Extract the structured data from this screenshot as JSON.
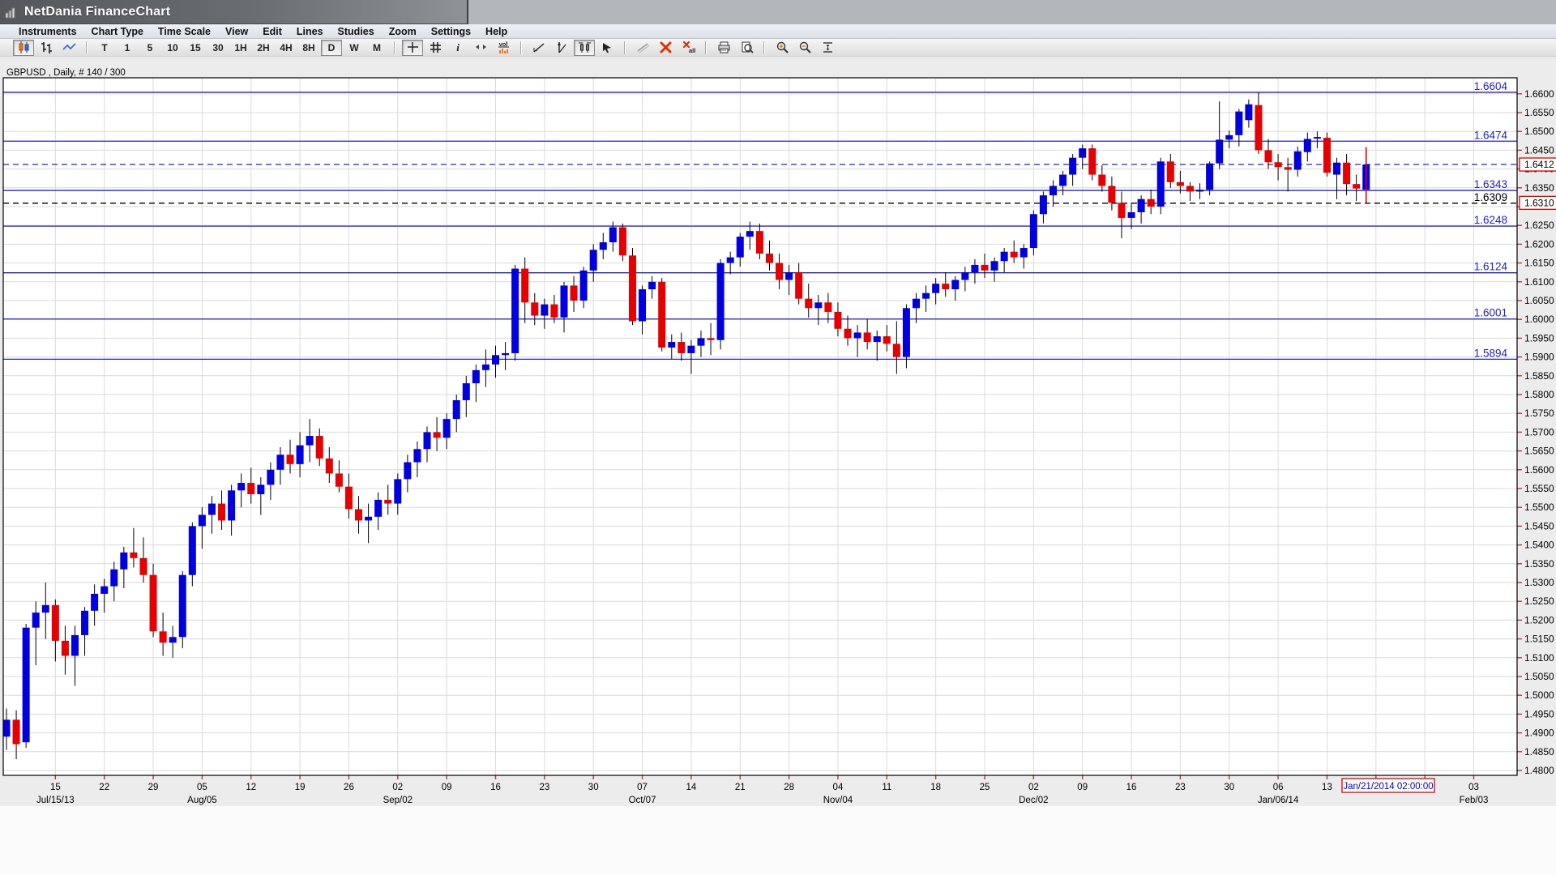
{
  "window": {
    "title": "NetDania FinanceChart",
    "icon": "mini-chart-icon"
  },
  "menu": {
    "items": [
      "Instruments",
      "Chart Type",
      "Time Scale",
      "View",
      "Edit",
      "Lines",
      "Studies",
      "Zoom",
      "Settings",
      "Help"
    ]
  },
  "toolbar": {
    "chart_type_buttons": [
      {
        "name": "candlestick-chart-button",
        "icon": "candlestick-icon",
        "pressed": true
      },
      {
        "name": "ohlc-bar-chart-button",
        "icon": "ohlc-bars-icon",
        "pressed": false
      },
      {
        "name": "line-chart-button",
        "icon": "line-chart-icon",
        "pressed": false
      }
    ],
    "timeframe_buttons": [
      {
        "label": "T",
        "pressed": false
      },
      {
        "label": "1",
        "pressed": false
      },
      {
        "label": "5",
        "pressed": false
      },
      {
        "label": "10",
        "pressed": false
      },
      {
        "label": "15",
        "pressed": false
      },
      {
        "label": "30",
        "pressed": false
      },
      {
        "label": "1H",
        "pressed": false
      },
      {
        "label": "2H",
        "pressed": false
      },
      {
        "label": "4H",
        "pressed": false
      },
      {
        "label": "8H",
        "pressed": false
      },
      {
        "label": "D",
        "pressed": true
      },
      {
        "label": "W",
        "pressed": false
      },
      {
        "label": "M",
        "pressed": false
      }
    ],
    "view_tool_buttons": [
      {
        "name": "crosshair-button",
        "icon": "crosshair-icon",
        "pressed": true
      },
      {
        "name": "grid-button",
        "icon": "grid-icon",
        "pressed": false
      },
      {
        "name": "info-button",
        "icon": "info-icon",
        "pressed": false
      },
      {
        "name": "scroll-arrows-button",
        "icon": "left-right-arrows-icon",
        "pressed": false
      },
      {
        "name": "volume-button",
        "icon": "volume-bars-icon",
        "pressed": false
      }
    ],
    "line_tool_buttons": [
      {
        "name": "trend-angle-button",
        "icon": "trend-angle-icon",
        "pressed": false
      },
      {
        "name": "vertical-trend-button",
        "icon": "vertical-trend-icon",
        "pressed": false
      },
      {
        "name": "bar-compare-button",
        "icon": "candle-compare-icon",
        "pressed": true
      },
      {
        "name": "pointer-flag-button",
        "icon": "pointer-flag-icon",
        "pressed": false
      }
    ],
    "edit_buttons": [
      {
        "name": "draw-line-button",
        "icon": "diagonal-line-icon",
        "pressed": false
      },
      {
        "name": "delete-button",
        "icon": "red-x-icon",
        "pressed": false
      },
      {
        "name": "delete-all-button",
        "icon": "red-x-all-icon",
        "pressed": false
      }
    ],
    "print_buttons": [
      {
        "name": "print-button",
        "icon": "printer-icon",
        "pressed": false
      },
      {
        "name": "print-preview-button",
        "icon": "print-preview-icon",
        "pressed": false
      }
    ],
    "zoom_buttons": [
      {
        "name": "zoom-in-button",
        "icon": "zoom-in-icon",
        "pressed": false
      },
      {
        "name": "zoom-out-button",
        "icon": "zoom-out-icon",
        "pressed": false
      },
      {
        "name": "fit-vertical-button",
        "icon": "fit-vertical-icon",
        "pressed": false
      }
    ]
  },
  "chart": {
    "instrument_label": "GBPUSD , Daily, # 140 / 300",
    "price_axis": {
      "min": 1.48,
      "max": 1.66,
      "step": 0.005
    },
    "levels": [
      {
        "label": "1.6604",
        "price": 1.6604,
        "style": "solid",
        "color": "#2121cc"
      },
      {
        "label": "1.6474",
        "price": 1.6474,
        "style": "solid",
        "color": "#2121cc"
      },
      {
        "label": "",
        "price": 1.6412,
        "style": "dashed",
        "color": "#2121cc"
      },
      {
        "label": "1.6343",
        "price": 1.6343,
        "style": "solid",
        "color": "#2121cc"
      },
      {
        "label": "1.6309",
        "price": 1.6309,
        "style": "dashed",
        "color": "#000000"
      },
      {
        "label": "1.6248",
        "price": 1.6248,
        "style": "solid",
        "color": "#2121cc"
      },
      {
        "label": "1.6124",
        "price": 1.6124,
        "style": "solid",
        "color": "#2121cc"
      },
      {
        "label": "1.6001",
        "price": 1.6001,
        "style": "solid",
        "color": "#2121cc"
      },
      {
        "label": "1.5894",
        "price": 1.5894,
        "style": "solid",
        "color": "#2121cc"
      }
    ],
    "price_marker_boxes": [
      {
        "text": "1.6412",
        "price": 1.6412
      },
      {
        "text": "1.6310",
        "price": 1.631
      }
    ],
    "cursor_date_box": "Jan/21/2014 02:00:00",
    "x_axis": {
      "week_labels": [
        "15",
        "22",
        "29",
        "05",
        "12",
        "19",
        "26",
        "02",
        "09",
        "16",
        "23",
        "30",
        "07",
        "14",
        "21",
        "28",
        "04",
        "11",
        "18",
        "25",
        "02",
        "09",
        "16",
        "23",
        "30",
        "06",
        "13",
        "",
        "",
        "03"
      ],
      "month_labels": [
        {
          "week_index": 0,
          "text": "Jul/15/13"
        },
        {
          "week_index": 3,
          "text": "Aug/05"
        },
        {
          "week_index": 7,
          "text": "Sep/02"
        },
        {
          "week_index": 12,
          "text": "Oct/07"
        },
        {
          "week_index": 16,
          "text": "Nov/04"
        },
        {
          "week_index": 20,
          "text": "Dec/02"
        },
        {
          "week_index": 25,
          "text": "Jan/06/14"
        },
        {
          "week_index": 29,
          "text": "Feb/03"
        }
      ]
    }
  },
  "chart_data": {
    "type": "candlestick",
    "title": "GBPUSD Daily",
    "up_color": "#0000e0",
    "down_color": "#e60000",
    "wick_color": "#000000",
    "ylim": [
      1.48,
      1.66
    ],
    "current_bar_line": {
      "high": 1.6458,
      "low": 1.631
    },
    "candles": [
      [
        1.489,
        1.4965,
        1.4855,
        1.4935
      ],
      [
        1.4935,
        1.496,
        1.483,
        1.487
      ],
      [
        1.4875,
        1.519,
        1.486,
        1.518
      ],
      [
        1.518,
        1.525,
        1.508,
        1.522
      ],
      [
        1.522,
        1.53,
        1.515,
        1.524
      ],
      [
        1.524,
        1.5255,
        1.509,
        1.5145
      ],
      [
        1.5145,
        1.5185,
        1.5055,
        1.5105
      ],
      [
        1.5105,
        1.5185,
        1.5025,
        1.516
      ],
      [
        1.516,
        1.5235,
        1.5105,
        1.5225
      ],
      [
        1.5225,
        1.5295,
        1.5185,
        1.527
      ],
      [
        1.527,
        1.531,
        1.522,
        1.529
      ],
      [
        1.529,
        1.5355,
        1.525,
        1.5335
      ],
      [
        1.5335,
        1.5395,
        1.5285,
        1.538
      ],
      [
        1.538,
        1.5445,
        1.534,
        1.5365
      ],
      [
        1.5365,
        1.542,
        1.53,
        1.532
      ],
      [
        1.532,
        1.535,
        1.5155,
        1.517
      ],
      [
        1.517,
        1.522,
        1.5105,
        1.514
      ],
      [
        1.514,
        1.5185,
        1.51,
        1.5155
      ],
      [
        1.5155,
        1.533,
        1.5125,
        1.532
      ],
      [
        1.532,
        1.546,
        1.529,
        1.545
      ],
      [
        1.545,
        1.55,
        1.539,
        1.548
      ],
      [
        1.548,
        1.553,
        1.543,
        1.551
      ],
      [
        1.551,
        1.5545,
        1.544,
        1.5465
      ],
      [
        1.5465,
        1.556,
        1.5425,
        1.5545
      ],
      [
        1.5545,
        1.559,
        1.55,
        1.5565
      ],
      [
        1.5565,
        1.5605,
        1.551,
        1.5535
      ],
      [
        1.5535,
        1.558,
        1.548,
        1.556
      ],
      [
        1.556,
        1.562,
        1.552,
        1.56
      ],
      [
        1.56,
        1.566,
        1.556,
        1.564
      ],
      [
        1.564,
        1.568,
        1.559,
        1.5615
      ],
      [
        1.5615,
        1.57,
        1.558,
        1.5665
      ],
      [
        1.5665,
        1.5735,
        1.562,
        1.569
      ],
      [
        1.569,
        1.571,
        1.561,
        1.563
      ],
      [
        1.563,
        1.566,
        1.5565,
        1.559
      ],
      [
        1.559,
        1.5625,
        1.554,
        1.5555
      ],
      [
        1.5555,
        1.559,
        1.547,
        1.5495
      ],
      [
        1.5495,
        1.553,
        1.543,
        1.5465
      ],
      [
        1.5465,
        1.551,
        1.5405,
        1.5475
      ],
      [
        1.5475,
        1.554,
        1.544,
        1.552
      ],
      [
        1.552,
        1.556,
        1.548,
        1.551
      ],
      [
        1.551,
        1.559,
        1.548,
        1.5575
      ],
      [
        1.5575,
        1.564,
        1.554,
        1.562
      ],
      [
        1.562,
        1.5675,
        1.558,
        1.5655
      ],
      [
        1.5655,
        1.5715,
        1.562,
        1.57
      ],
      [
        1.57,
        1.574,
        1.565,
        1.5685
      ],
      [
        1.5685,
        1.575,
        1.5655,
        1.5735
      ],
      [
        1.5735,
        1.58,
        1.57,
        1.5785
      ],
      [
        1.5785,
        1.585,
        1.574,
        1.583
      ],
      [
        1.583,
        1.588,
        1.578,
        1.5865
      ],
      [
        1.5865,
        1.592,
        1.582,
        1.588
      ],
      [
        1.588,
        1.593,
        1.5845,
        1.5905
      ],
      [
        1.5905,
        1.594,
        1.5865,
        1.591
      ],
      [
        1.591,
        1.6145,
        1.589,
        1.6135
      ],
      [
        1.6135,
        1.6165,
        1.599,
        1.6045
      ],
      [
        1.6045,
        1.607,
        1.5985,
        1.601
      ],
      [
        1.601,
        1.6055,
        1.5975,
        1.604
      ],
      [
        1.604,
        1.6065,
        1.599,
        1.6005
      ],
      [
        1.6005,
        1.61,
        1.5965,
        1.609
      ],
      [
        1.609,
        1.6115,
        1.602,
        1.605
      ],
      [
        1.605,
        1.614,
        1.603,
        1.613
      ],
      [
        1.613,
        1.62,
        1.61,
        1.6185
      ],
      [
        1.6185,
        1.623,
        1.616,
        1.6205
      ],
      [
        1.6205,
        1.626,
        1.618,
        1.6245
      ],
      [
        1.6245,
        1.6255,
        1.6155,
        1.617
      ],
      [
        1.617,
        1.619,
        1.5985,
        1.5995
      ],
      [
        1.5995,
        1.609,
        1.596,
        1.608
      ],
      [
        1.608,
        1.6115,
        1.6055,
        1.61
      ],
      [
        1.61,
        1.611,
        1.5915,
        1.5925
      ],
      [
        1.5925,
        1.596,
        1.5895,
        1.594
      ],
      [
        1.594,
        1.5965,
        1.589,
        1.591
      ],
      [
        1.591,
        1.5945,
        1.5855,
        1.593
      ],
      [
        1.593,
        1.597,
        1.59,
        1.595
      ],
      [
        1.595,
        1.599,
        1.5905,
        1.5945
      ],
      [
        1.5945,
        1.616,
        1.592,
        1.615
      ],
      [
        1.615,
        1.618,
        1.612,
        1.6165
      ],
      [
        1.6165,
        1.623,
        1.614,
        1.622
      ],
      [
        1.622,
        1.626,
        1.6185,
        1.6235
      ],
      [
        1.6235,
        1.6255,
        1.616,
        1.6175
      ],
      [
        1.6175,
        1.621,
        1.613,
        1.615
      ],
      [
        1.615,
        1.6175,
        1.608,
        1.6105
      ],
      [
        1.6105,
        1.6145,
        1.6065,
        1.6125
      ],
      [
        1.6125,
        1.615,
        1.604,
        1.6055
      ],
      [
        1.6055,
        1.6095,
        1.6005,
        1.603
      ],
      [
        1.603,
        1.6065,
        1.5985,
        1.6045
      ],
      [
        1.6045,
        1.607,
        1.599,
        1.602
      ],
      [
        1.602,
        1.6045,
        1.5955,
        1.5975
      ],
      [
        1.5975,
        1.601,
        1.593,
        1.595
      ],
      [
        1.595,
        1.5985,
        1.59,
        1.5965
      ],
      [
        1.5965,
        1.6,
        1.592,
        1.594
      ],
      [
        1.594,
        1.597,
        1.589,
        1.5955
      ],
      [
        1.5955,
        1.5985,
        1.5915,
        1.5935
      ],
      [
        1.5935,
        1.5995,
        1.5855,
        1.59
      ],
      [
        1.59,
        1.604,
        1.587,
        1.603
      ],
      [
        1.603,
        1.607,
        1.599,
        1.6055
      ],
      [
        1.6055,
        1.609,
        1.602,
        1.607
      ],
      [
        1.607,
        1.611,
        1.604,
        1.6095
      ],
      [
        1.6095,
        1.6125,
        1.606,
        1.608
      ],
      [
        1.608,
        1.6115,
        1.605,
        1.6105
      ],
      [
        1.6105,
        1.614,
        1.6075,
        1.6125
      ],
      [
        1.6125,
        1.616,
        1.6095,
        1.6145
      ],
      [
        1.6145,
        1.6175,
        1.611,
        1.613
      ],
      [
        1.613,
        1.6165,
        1.61,
        1.6155
      ],
      [
        1.6155,
        1.619,
        1.6125,
        1.618
      ],
      [
        1.618,
        1.621,
        1.615,
        1.6165
      ],
      [
        1.6165,
        1.62,
        1.6135,
        1.619
      ],
      [
        1.619,
        1.629,
        1.617,
        1.628
      ],
      [
        1.628,
        1.634,
        1.6255,
        1.633
      ],
      [
        1.633,
        1.637,
        1.63,
        1.6355
      ],
      [
        1.6355,
        1.6395,
        1.633,
        1.6385
      ],
      [
        1.6385,
        1.644,
        1.6355,
        1.643
      ],
      [
        1.643,
        1.6465,
        1.64,
        1.6455
      ],
      [
        1.6455,
        1.6465,
        1.637,
        1.6385
      ],
      [
        1.6385,
        1.641,
        1.634,
        1.6355
      ],
      [
        1.6355,
        1.638,
        1.629,
        1.631
      ],
      [
        1.631,
        1.634,
        1.6216,
        1.627
      ],
      [
        1.627,
        1.631,
        1.624,
        1.6285
      ],
      [
        1.6285,
        1.633,
        1.6255,
        1.632
      ],
      [
        1.632,
        1.6345,
        1.628,
        1.63
      ],
      [
        1.63,
        1.643,
        1.628,
        1.642
      ],
      [
        1.642,
        1.644,
        1.635,
        1.6365
      ],
      [
        1.6365,
        1.6395,
        1.6335,
        1.6355
      ],
      [
        1.6355,
        1.6365,
        1.6315,
        1.634
      ],
      [
        1.634,
        1.6362,
        1.632,
        1.6345
      ],
      [
        1.6345,
        1.642,
        1.633,
        1.6415
      ],
      [
        1.6415,
        1.658,
        1.64,
        1.6478
      ],
      [
        1.6478,
        1.6502,
        1.6455,
        1.649
      ],
      [
        1.649,
        1.656,
        1.646,
        1.6553
      ],
      [
        1.653,
        1.6585,
        1.651,
        1.6572
      ],
      [
        1.657,
        1.6604,
        1.644,
        1.645
      ],
      [
        1.645,
        1.648,
        1.64,
        1.6418
      ],
      [
        1.6418,
        1.644,
        1.637,
        1.6405
      ],
      [
        1.6405,
        1.643,
        1.634,
        1.6398
      ],
      [
        1.6398,
        1.646,
        1.638,
        1.6447
      ],
      [
        1.6445,
        1.6497,
        1.642,
        1.648
      ],
      [
        1.648,
        1.65,
        1.6455,
        1.6483
      ],
      [
        1.6483,
        1.6497,
        1.638,
        1.639
      ],
      [
        1.6385,
        1.643,
        1.632,
        1.6417
      ],
      [
        1.6417,
        1.644,
        1.633,
        1.636
      ],
      [
        1.636,
        1.6385,
        1.6315,
        1.6348
      ],
      [
        1.6345,
        1.6458,
        1.631,
        1.6412
      ]
    ]
  }
}
